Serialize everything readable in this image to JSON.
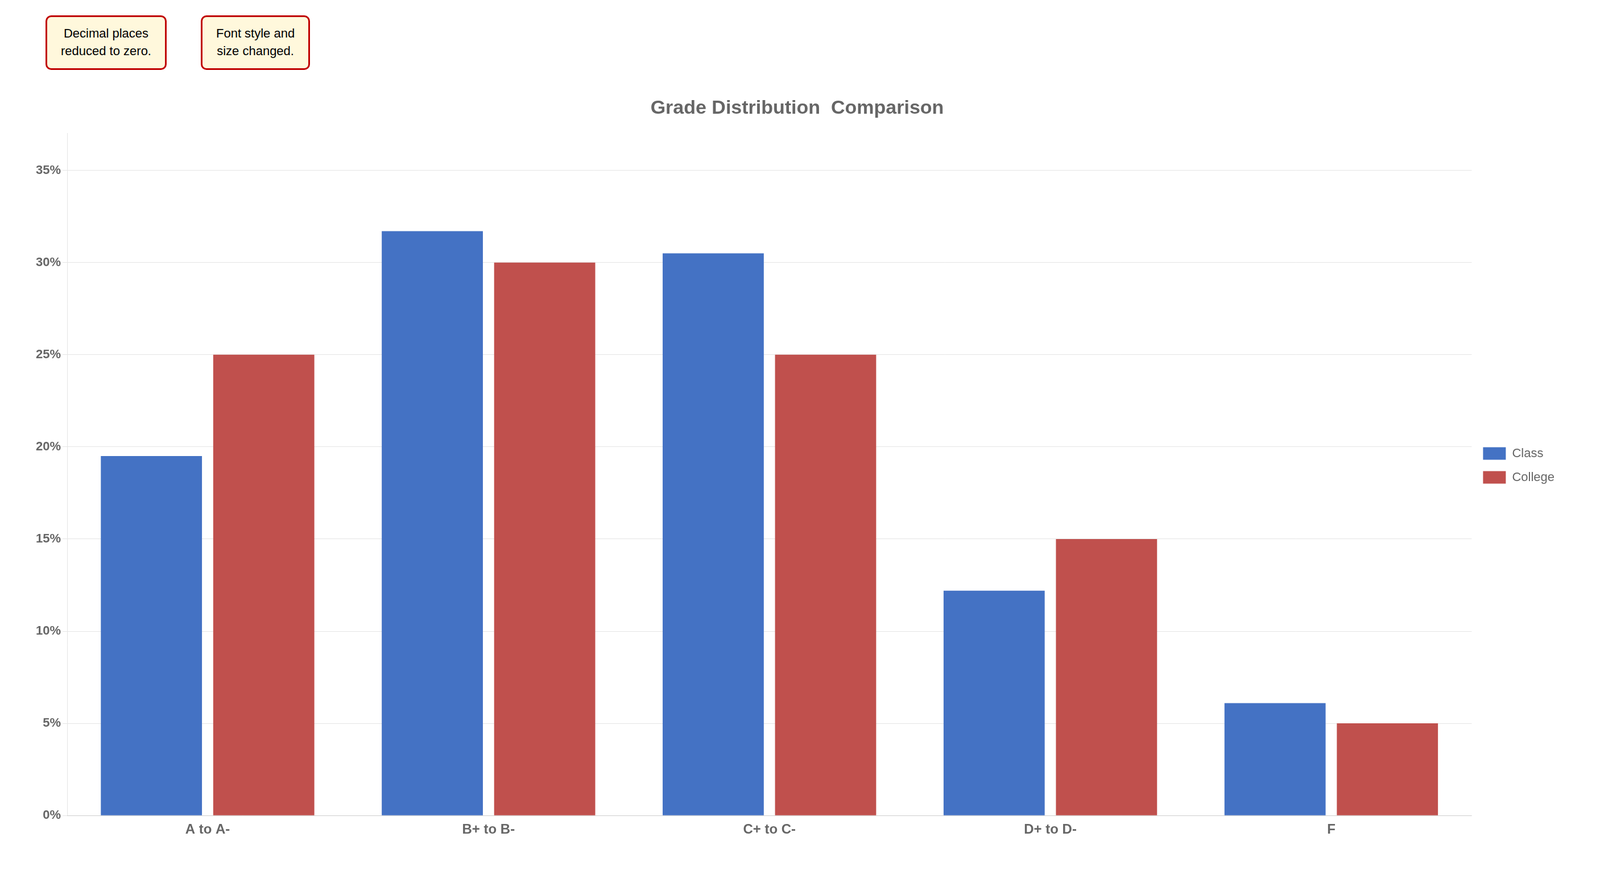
{
  "chart_data": {
    "type": "bar",
    "title": "Grade Distribution  Comparison",
    "categories": [
      "A to A-",
      "B+ to B-",
      "C+ to C-",
      "D+ to D-",
      "F"
    ],
    "series": [
      {
        "name": "Class",
        "color": "#4472C4",
        "values": [
          0.195,
          0.317,
          0.305,
          0.122,
          0.061
        ]
      },
      {
        "name": "College",
        "color": "#C0504D",
        "values": [
          0.25,
          0.3,
          0.25,
          0.15,
          0.05
        ]
      }
    ],
    "ylim": [
      0,
      0.37
    ],
    "yticks": [
      {
        "value": 0.0,
        "label": "0%"
      },
      {
        "value": 0.05,
        "label": "5%"
      },
      {
        "value": 0.1,
        "label": "10%"
      },
      {
        "value": 0.15,
        "label": "15%"
      },
      {
        "value": 0.2,
        "label": "20%"
      },
      {
        "value": 0.25,
        "label": "25%"
      },
      {
        "value": 0.3,
        "label": "30%"
      },
      {
        "value": 0.35,
        "label": "35%"
      }
    ],
    "grid": true,
    "legend": "right",
    "annotations": [
      "Decimal places\nreduced to zero.",
      "Font style and\nsize changed."
    ]
  }
}
